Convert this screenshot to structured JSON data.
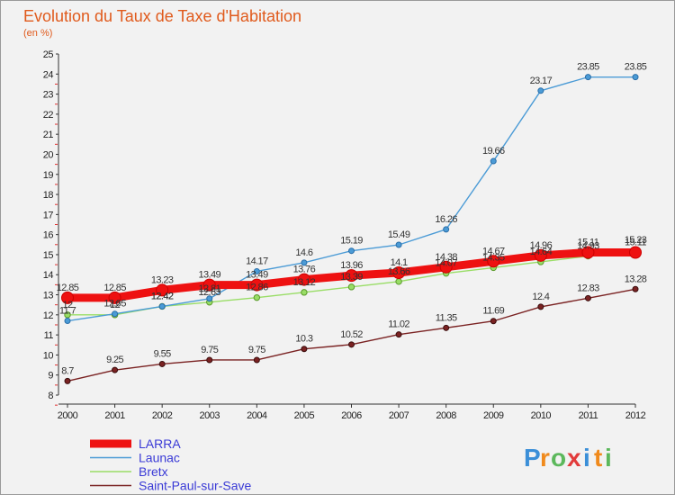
{
  "chart_data": {
    "type": "line",
    "title": "Evolution du Taux de Taxe d'Habitation",
    "subtitle": "(en %)",
    "xlabel": "",
    "ylabel": "",
    "categories": [
      "2000",
      "2001",
      "2002",
      "2003",
      "2004",
      "2005",
      "2006",
      "2007",
      "2008",
      "2009",
      "2010",
      "2011",
      "2012"
    ],
    "ylim": [
      8,
      25
    ],
    "yticks": [
      8,
      9,
      10,
      11,
      12,
      13,
      14,
      15,
      16,
      17,
      18,
      19,
      20,
      21,
      22,
      23,
      24,
      25
    ],
    "grid": false,
    "legend_position": "bottom-left",
    "series": [
      {
        "name": "LARRA",
        "color": "#ee1111",
        "values": [
          12.85,
          12.85,
          13.23,
          13.49,
          13.49,
          13.76,
          13.96,
          14.1,
          14.38,
          14.67,
          14.96,
          15.11,
          15.11
        ],
        "labels": [
          "12.85",
          "12.85",
          "13.23",
          "13.49",
          "13.49",
          "13.76",
          "13.96",
          "14.1",
          "14.38",
          "14.67",
          "14.96",
          "15.11",
          "15.11"
        ]
      },
      {
        "name": "Launac",
        "color": "#4b9bd6",
        "values": [
          11.7,
          12.05,
          12.42,
          12.81,
          14.17,
          14.6,
          15.19,
          15.49,
          16.26,
          19.66,
          23.17,
          23.85,
          23.85
        ],
        "labels": [
          "11.7",
          "12.05",
          "12.42",
          "12.81",
          "14.17",
          "14.6",
          "15.19",
          "15.49",
          "16.26",
          "19.66",
          "23.17",
          "23.85",
          "23.85"
        ]
      },
      {
        "name": "Bretx",
        "color": "#99dd66",
        "values": [
          12.0,
          12.0,
          12.42,
          12.63,
          12.86,
          13.12,
          13.39,
          13.66,
          14.07,
          14.35,
          14.64,
          14.93,
          15.23
        ],
        "labels": [
          "12",
          "12",
          "12.42",
          "12.63",
          "12.86",
          "13.12",
          "13.39",
          "13.66",
          "14.07",
          "14.35",
          "14.64",
          "14.93",
          "15.23"
        ]
      },
      {
        "name": "Saint-Paul-sur-Save",
        "color": "#7a2222",
        "values": [
          8.7,
          9.25,
          9.55,
          9.75,
          9.75,
          10.3,
          10.52,
          11.02,
          11.35,
          11.69,
          12.4,
          12.83,
          13.28
        ],
        "labels": [
          "8.7",
          "9.25",
          "9.55",
          "9.75",
          "9.75",
          "10.3",
          "10.52",
          "11.02",
          "11.35",
          "11.69",
          "12.4",
          "12.83",
          "13.28"
        ]
      }
    ]
  },
  "brand": {
    "letters": [
      "P",
      "r",
      "o",
      "x",
      "i",
      "t",
      "i"
    ],
    "colors": [
      "#3b8fd8",
      "#f08a1c",
      "#5cb85c",
      "#e23b3b",
      "#3b8fd8",
      "#f08a1c",
      "#5cb85c"
    ]
  }
}
